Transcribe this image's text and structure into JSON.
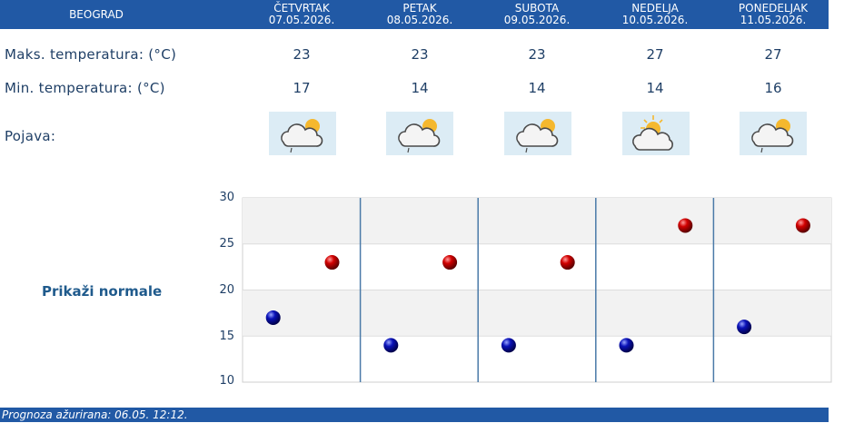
{
  "header": {
    "city": "BEOGRAD",
    "days": [
      {
        "name": "ČETVRTAK",
        "date": "07.05.2026."
      },
      {
        "name": "PETAK",
        "date": "08.05.2026."
      },
      {
        "name": "SUBOTA",
        "date": "09.05.2026."
      },
      {
        "name": "NEDELJA",
        "date": "10.05.2026."
      },
      {
        "name": "PONEDELJAK",
        "date": "11.05.2026."
      }
    ]
  },
  "rows": {
    "max_label": "Maks. temperatura: (°C)",
    "min_label": "Min. temperatura: (°C)",
    "phenomenon_label": "Pojava:",
    "max": [
      "23",
      "23",
      "23",
      "27",
      "27"
    ],
    "min": [
      "17",
      "14",
      "14",
      "14",
      "16"
    ],
    "icons": [
      "cloud-sun-rain-icon",
      "cloud-sun-rain-icon",
      "cloud-sun-rain-icon",
      "sun-behind-cloud-icon",
      "cloud-sun-rain-icon"
    ]
  },
  "normals_link": "Prikaži normale",
  "footer": "Prognoza ažurirana:  06.05. 12:12.",
  "colors": {
    "header_bg": "#2159a5",
    "max_marker": "#cc0000",
    "min_marker": "#0000aa",
    "plot_band": "#f2f2f2",
    "day_divider": "#4a7aa8"
  },
  "chart_data": {
    "type": "scatter",
    "categories": [
      "ČETVRTAK",
      "PETAK",
      "SUBOTA",
      "NEDELJA",
      "PONEDELJAK"
    ],
    "series": [
      {
        "values": [
          23,
          23,
          23,
          27,
          27
        ],
        "color": "#cc0000"
      },
      {
        "values": [
          17,
          14,
          14,
          14,
          16
        ],
        "color": "#0000aa"
      }
    ],
    "ylim": [
      10,
      30
    ],
    "yticks": [
      "30",
      "25",
      "20",
      "15",
      "10"
    ],
    "grid": true
  }
}
